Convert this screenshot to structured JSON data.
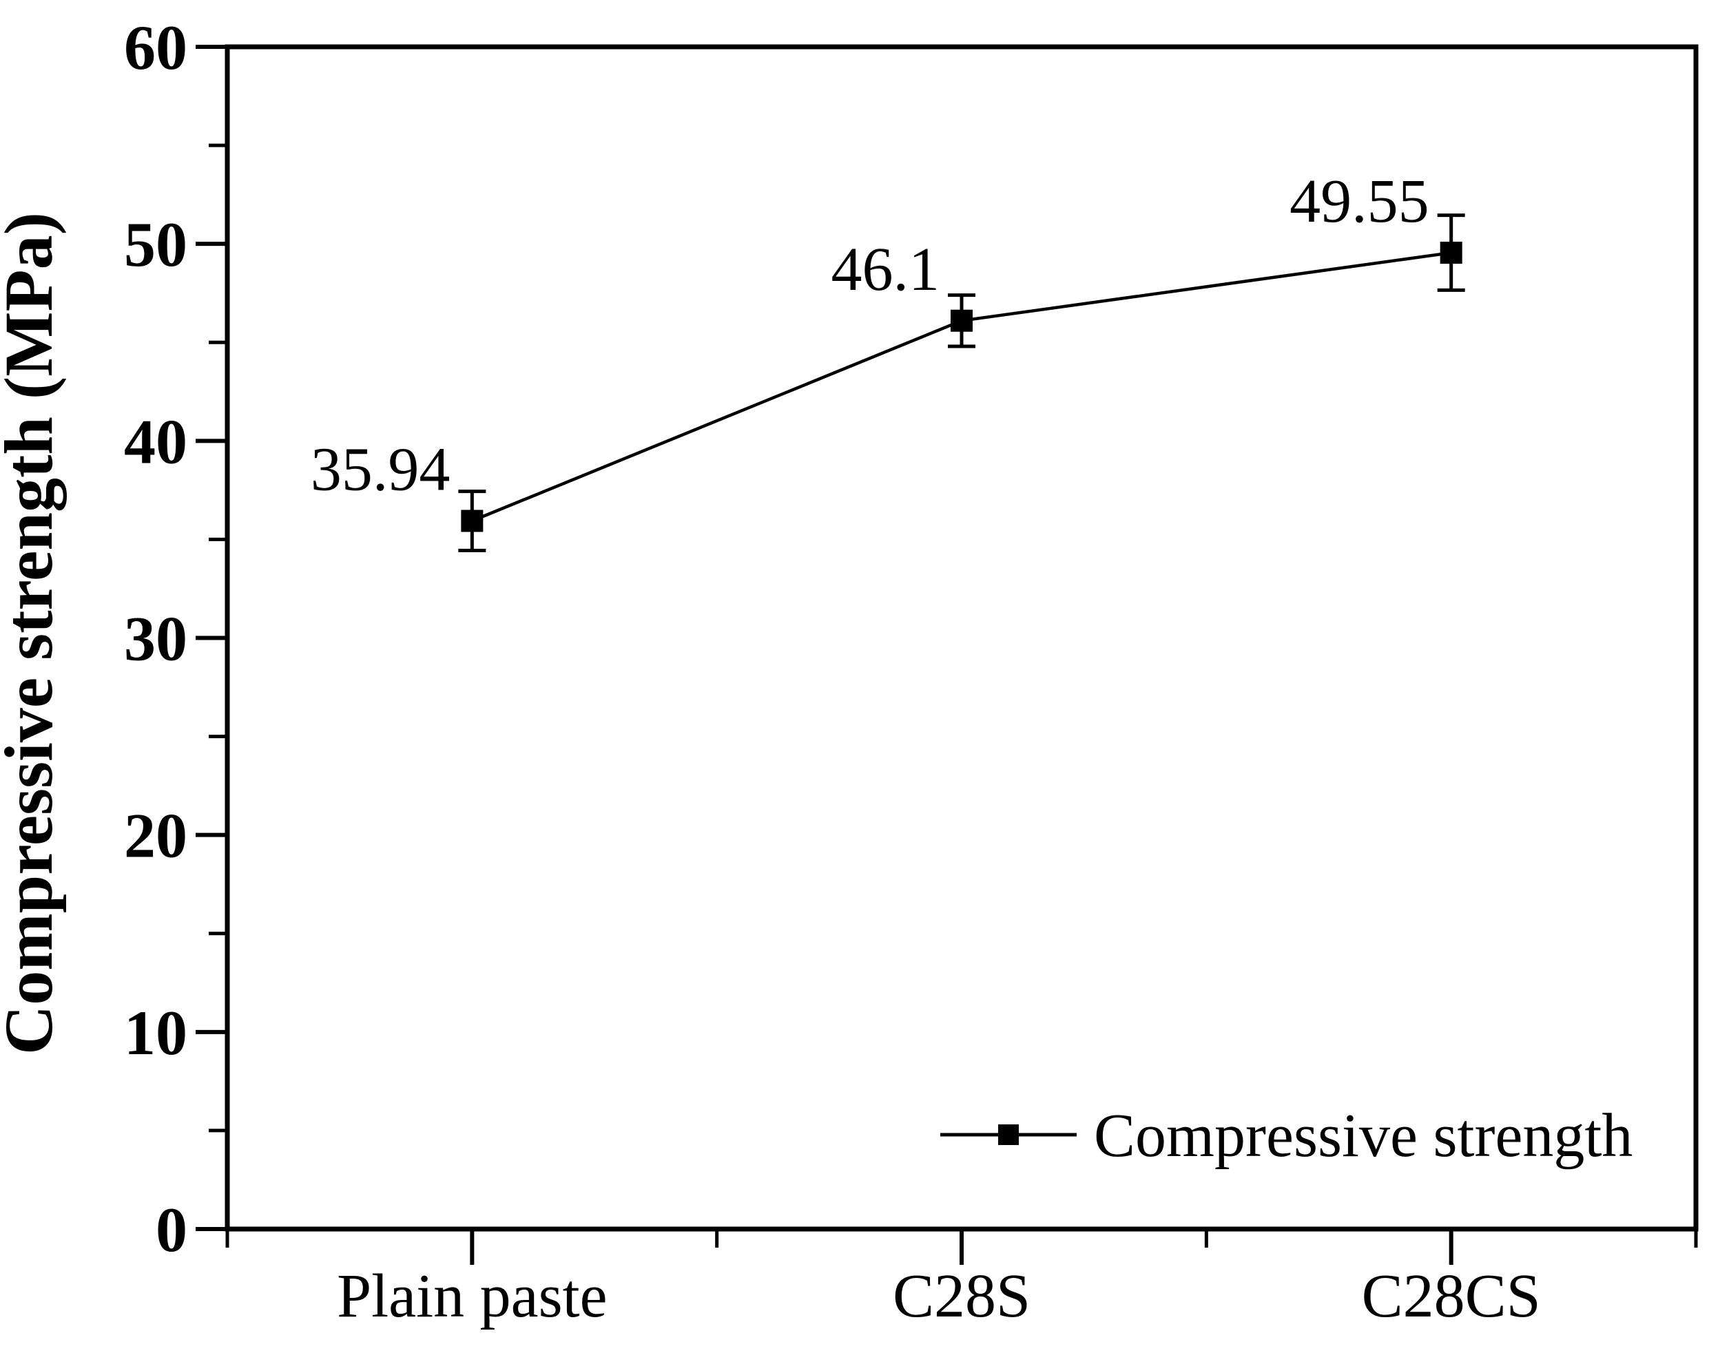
{
  "figure": {
    "background": "#ffffff",
    "axis_color": "#000000",
    "text_color": "#000000"
  },
  "chart_data": {
    "type": "line",
    "title": "",
    "xlabel": "",
    "ylabel": "Compressive strength (MPa)",
    "categories": [
      "Plain paste",
      "C28S",
      "C28CS"
    ],
    "series": [
      {
        "name": "Compressive strength",
        "values": [
          35.94,
          46.1,
          49.55
        ],
        "errors": [
          1.5,
          1.3,
          1.9
        ],
        "point_labels": [
          "35.94",
          "46.1",
          "49.55"
        ],
        "marker": "filled-square",
        "color": "#000000"
      }
    ],
    "ylim": [
      0,
      60
    ],
    "y_major_step": 10,
    "y_minor_step": 5,
    "y_tick_labels": [
      "0",
      "10",
      "20",
      "30",
      "40",
      "50",
      "60"
    ],
    "grid": false,
    "legend": {
      "position": "inside-bottom-right",
      "entries": [
        "Compressive strength"
      ]
    }
  }
}
